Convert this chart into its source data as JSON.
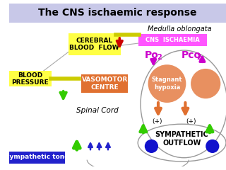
{
  "title": "The CNS ischaemic response",
  "title_bg": "#c8c8e8",
  "medulla_label": "Medulla oblongata",
  "cns_ischaemia_label": "CNS  ISCHAEMIA",
  "cns_ischaemia_color": "#ff55ff",
  "cerebral_label": "CEREBRAL\nBLOOD  FLOW",
  "cerebral_box_color": "#ffff44",
  "blood_pressure_label": "BLOOD\nPRESSURE",
  "blood_pressure_box_color": "#ffff44",
  "vasomotor_label": "VASOMOTOR\nCENTRE",
  "vasomotor_box_color": "#e07030",
  "stagnant_label": "Stagnant\nhypoxia",
  "stagnant_circle_color": "#e89060",
  "spinal_cord_label": "Spinal Cord",
  "sympathetic_label1": "SYMPATHETIC",
  "sympathetic_label2": "OUTFLOW",
  "sympathetic_tone_label": "Sympathetic tone",
  "sympathetic_tone_bg": "#2222cc",
  "po2_label": "Po",
  "po2_sub": "2",
  "pco2_label": "Pco",
  "pco2_sub": "2",
  "plus_label": "(+)",
  "arrow_red": "#cc0000",
  "arrow_green": "#33cc00",
  "arrow_orange": "#e07030",
  "arrow_magenta": "#cc00cc",
  "arrow_yellow": "#cccc00",
  "blue_arrow_color": "#2222cc",
  "blue_dot_color": "#1111cc",
  "ellipse_color": "#999999",
  "line_color": "#aaaaaa",
  "background": "#ffffff"
}
